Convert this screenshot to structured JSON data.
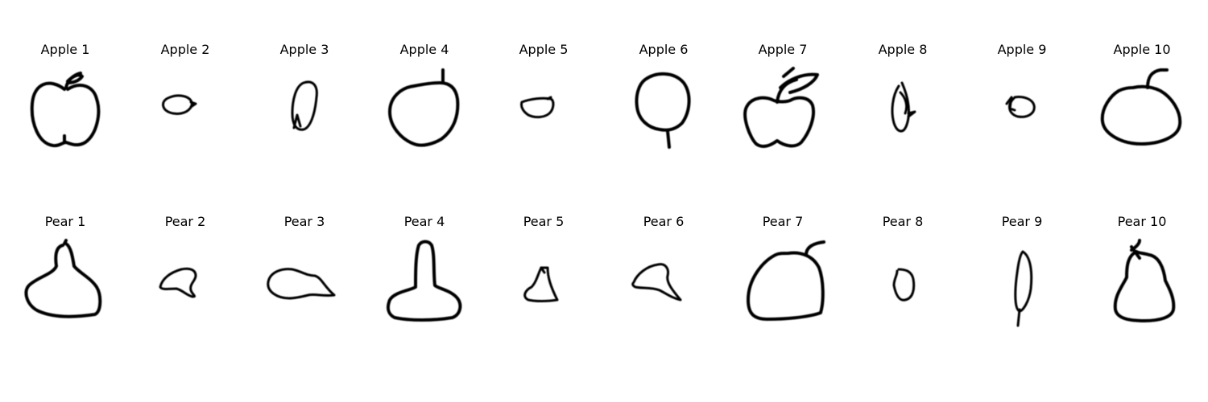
{
  "rows": [
    {
      "category": "apple",
      "items": [
        {
          "title": "Apple 1",
          "icon": "apple-sketch-icon"
        },
        {
          "title": "Apple 2",
          "icon": "apple-sketch-icon"
        },
        {
          "title": "Apple 3",
          "icon": "apple-sketch-icon"
        },
        {
          "title": "Apple 4",
          "icon": "apple-sketch-icon"
        },
        {
          "title": "Apple 5",
          "icon": "apple-sketch-icon"
        },
        {
          "title": "Apple 6",
          "icon": "apple-sketch-icon"
        },
        {
          "title": "Apple 7",
          "icon": "apple-sketch-icon"
        },
        {
          "title": "Apple 8",
          "icon": "apple-sketch-icon"
        },
        {
          "title": "Apple 9",
          "icon": "apple-sketch-icon"
        },
        {
          "title": "Apple 10",
          "icon": "apple-sketch-icon"
        }
      ]
    },
    {
      "category": "pear",
      "items": [
        {
          "title": "Pear 1",
          "icon": "pear-sketch-icon"
        },
        {
          "title": "Pear 2",
          "icon": "pear-sketch-icon"
        },
        {
          "title": "Pear 3",
          "icon": "pear-sketch-icon"
        },
        {
          "title": "Pear 4",
          "icon": "pear-sketch-icon"
        },
        {
          "title": "Pear 5",
          "icon": "pear-sketch-icon"
        },
        {
          "title": "Pear 6",
          "icon": "pear-sketch-icon"
        },
        {
          "title": "Pear 7",
          "icon": "pear-sketch-icon"
        },
        {
          "title": "Pear 8",
          "icon": "pear-sketch-icon"
        },
        {
          "title": "Pear 9",
          "icon": "pear-sketch-icon"
        },
        {
          "title": "Pear 10",
          "icon": "pear-sketch-icon"
        }
      ]
    }
  ],
  "colors": {
    "background": "#ffffff",
    "stroke": "#000000",
    "text": "#000000"
  }
}
